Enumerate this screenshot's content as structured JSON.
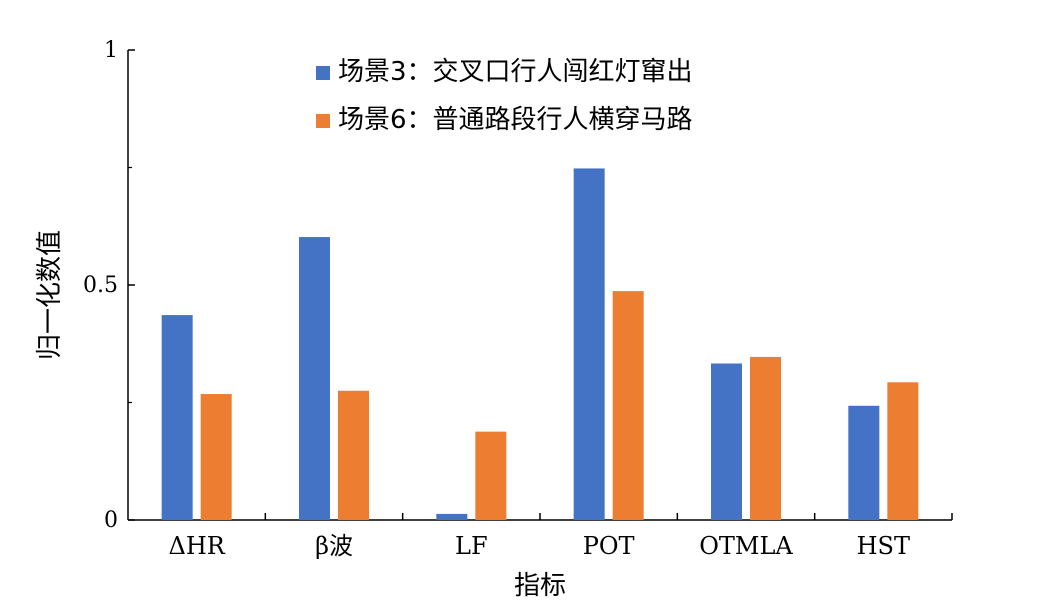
{
  "chart_data": {
    "type": "bar",
    "title": "",
    "xlabel": "指标",
    "ylabel": "归一化数值",
    "ylim": [
      0,
      1
    ],
    "yticks": [
      {
        "value": 0,
        "label": "0"
      },
      {
        "value": 0.5,
        "label": "0.5"
      },
      {
        "value": 1,
        "label": "1"
      }
    ],
    "categories": [
      "ΔHR",
      "β波",
      "LF",
      "POT",
      "OTMLA",
      "HST"
    ],
    "series": [
      {
        "name": "场景3：交叉口行人闯红灯窜出",
        "color": "#4472C4",
        "values": [
          0.436,
          0.602,
          0.013,
          0.748,
          0.333,
          0.243
        ]
      },
      {
        "name": "场景6：普通路段行人横穿马路",
        "color": "#ED7D31",
        "values": [
          0.268,
          0.275,
          0.188,
          0.487,
          0.347,
          0.293
        ]
      }
    ],
    "grid": false,
    "legend_position": "top-center"
  }
}
